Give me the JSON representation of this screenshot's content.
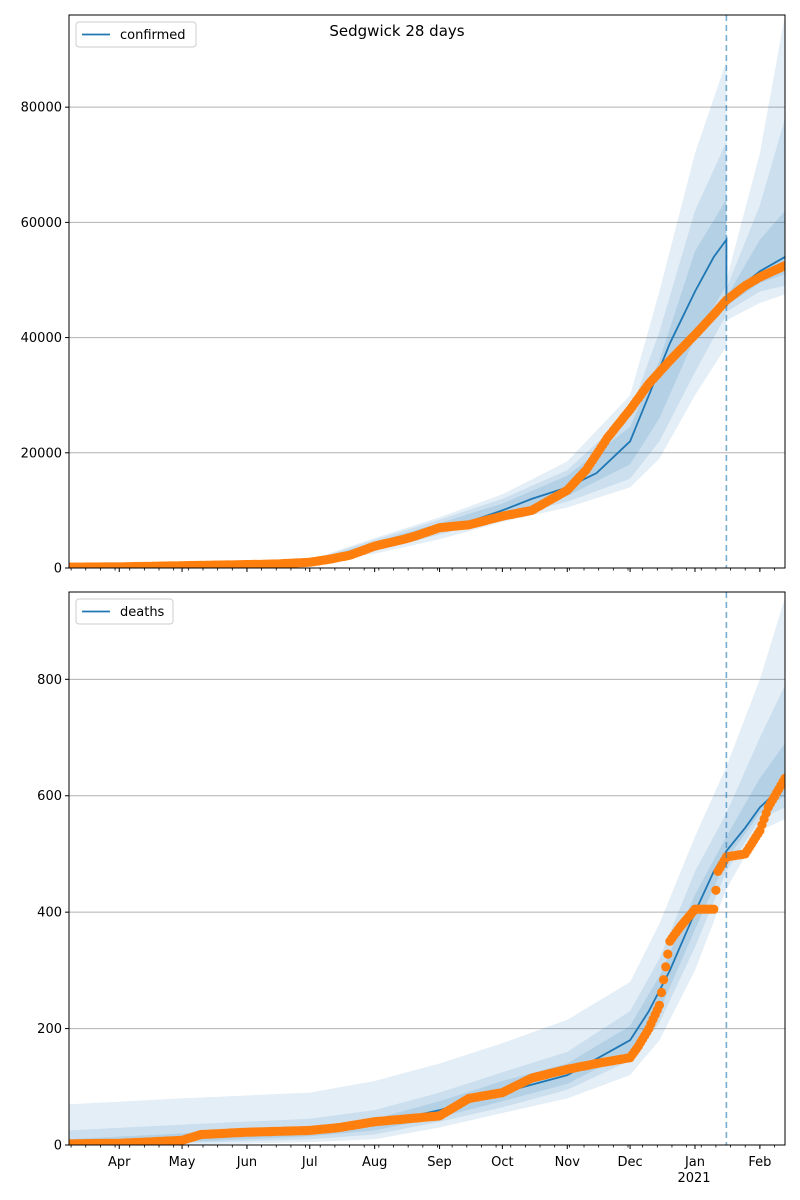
{
  "figure": {
    "title": "Sedgwick 28 days",
    "colors": {
      "model": "#1f77b4",
      "observed": "#ff7f0e",
      "band": "#1f77b4",
      "cutoff": "#1f77b4",
      "grid": "#b0b0b0"
    },
    "x_ticks": [
      {
        "date": "2020-04-01",
        "label": "Apr"
      },
      {
        "date": "2020-05-01",
        "label": "May"
      },
      {
        "date": "2020-06-01",
        "label": "Jun"
      },
      {
        "date": "2020-07-01",
        "label": "Jul"
      },
      {
        "date": "2020-08-01",
        "label": "Aug"
      },
      {
        "date": "2020-09-01",
        "label": "Sep"
      },
      {
        "date": "2020-10-01",
        "label": "Oct"
      },
      {
        "date": "2020-11-01",
        "label": "Nov"
      },
      {
        "date": "2020-12-01",
        "label": "Dec"
      },
      {
        "date": "2021-01-01",
        "label": "Jan"
      },
      {
        "date": "2021-02-01",
        "label": "Feb"
      }
    ],
    "year_label": "2021",
    "cutoff_date": "2021-01-16",
    "xlim": [
      "2020-03-08",
      "2021-02-13"
    ]
  },
  "chart_data": [
    {
      "type": "line",
      "legend": "confirmed",
      "legend_position": "top-left",
      "grid": "horizontal",
      "ylim": [
        0,
        96000
      ],
      "y_ticks": [
        0,
        20000,
        40000,
        60000,
        80000
      ],
      "series": [
        {
          "name": "confirmed",
          "kind": "model-median",
          "x": [
            "2020-03-08",
            "2020-04-01",
            "2020-05-01",
            "2020-06-01",
            "2020-07-01",
            "2020-07-15",
            "2020-08-01",
            "2020-08-15",
            "2020-09-01",
            "2020-09-15",
            "2020-10-01",
            "2020-10-15",
            "2020-11-01",
            "2020-11-15",
            "2020-12-01",
            "2020-12-10",
            "2020-12-20",
            "2021-01-01",
            "2021-01-10",
            "2021-01-16",
            "2021-01-16",
            "2021-01-25",
            "2021-02-01",
            "2021-02-13"
          ],
          "y": [
            0,
            50,
            250,
            500,
            1000,
            2200,
            4000,
            5500,
            7000,
            8000,
            10000,
            12000,
            14000,
            16500,
            22000,
            30000,
            39000,
            48000,
            54000,
            57000,
            46000,
            49500,
            51500,
            54000
          ]
        },
        {
          "kind": "observed",
          "x": [
            "2020-03-08",
            "2020-04-01",
            "2020-05-01",
            "2020-06-01",
            "2020-06-15",
            "2020-07-01",
            "2020-07-10",
            "2020-07-20",
            "2020-08-01",
            "2020-08-15",
            "2020-08-20",
            "2020-09-01",
            "2020-09-15",
            "2020-10-01",
            "2020-10-15",
            "2020-11-01",
            "2020-11-10",
            "2020-11-20",
            "2020-12-01",
            "2020-12-10",
            "2020-12-20",
            "2021-01-01",
            "2021-01-10",
            "2021-01-16",
            "2021-01-25",
            "2021-02-01",
            "2021-02-13"
          ],
          "y": [
            150,
            200,
            400,
            600,
            700,
            1000,
            1500,
            2200,
            3800,
            5000,
            5500,
            7000,
            7500,
            9000,
            10000,
            13500,
            17000,
            22500,
            27500,
            32000,
            36000,
            40500,
            44000,
            46500,
            49000,
            50500,
            52500
          ]
        }
      ],
      "bands": [
        {
          "level": "outer",
          "x": [
            "2020-03-08",
            "2020-05-01",
            "2020-07-01",
            "2020-08-01",
            "2020-09-01",
            "2020-10-01",
            "2020-11-01",
            "2020-12-01",
            "2020-12-15",
            "2021-01-01",
            "2021-01-16",
            "2021-01-16",
            "2021-02-01",
            "2021-02-13"
          ],
          "lower": [
            0,
            150,
            700,
            2500,
            5000,
            8000,
            10500,
            14000,
            19000,
            30000,
            38500,
            43000,
            46000,
            47500
          ],
          "upper": [
            200,
            600,
            1400,
            5200,
            8800,
            12800,
            18500,
            30000,
            48000,
            72000,
            88000,
            50000,
            72000,
            96000
          ]
        },
        {
          "level": "middle",
          "x": [
            "2020-03-08",
            "2020-05-01",
            "2020-07-01",
            "2020-08-01",
            "2020-09-01",
            "2020-10-01",
            "2020-11-01",
            "2020-12-01",
            "2020-12-15",
            "2021-01-01",
            "2021-01-16",
            "2021-01-16",
            "2021-02-01",
            "2021-02-13"
          ],
          "lower": [
            0,
            180,
            800,
            3000,
            5800,
            8800,
            11500,
            15500,
            22000,
            34000,
            44000,
            44500,
            48000,
            49000
          ],
          "upper": [
            150,
            450,
            1250,
            4900,
            8400,
            12000,
            17000,
            27000,
            41000,
            62000,
            74000,
            48500,
            63000,
            78000
          ]
        },
        {
          "level": "inner",
          "x": [
            "2020-03-08",
            "2020-05-01",
            "2020-07-01",
            "2020-08-01",
            "2020-09-01",
            "2020-10-01",
            "2020-11-01",
            "2020-12-01",
            "2020-12-15",
            "2021-01-01",
            "2021-01-16",
            "2021-01-16",
            "2021-02-01",
            "2021-02-13"
          ],
          "lower": [
            0,
            200,
            900,
            3400,
            6300,
            9300,
            12500,
            18000,
            26000,
            40000,
            49000,
            45500,
            49500,
            51000
          ],
          "upper": [
            100,
            350,
            1150,
            4500,
            7800,
            11200,
            16000,
            24500,
            36000,
            55000,
            64000,
            47000,
            57000,
            62000
          ]
        }
      ]
    },
    {
      "type": "line",
      "legend": "deaths",
      "legend_position": "top-left",
      "grid": "horizontal",
      "ylim": [
        0,
        950
      ],
      "y_ticks": [
        0,
        200,
        400,
        600,
        800
      ],
      "series": [
        {
          "name": "deaths",
          "kind": "model-median",
          "x": [
            "2020-03-08",
            "2020-04-01",
            "2020-05-01",
            "2020-06-01",
            "2020-07-01",
            "2020-08-01",
            "2020-09-01",
            "2020-10-01",
            "2020-11-01",
            "2020-12-01",
            "2020-12-10",
            "2020-12-20",
            "2021-01-01",
            "2021-01-10",
            "2021-01-16",
            "2021-01-25",
            "2021-02-01",
            "2021-02-13"
          ],
          "y": [
            0,
            3,
            10,
            20,
            25,
            35,
            60,
            90,
            120,
            180,
            230,
            300,
            400,
            470,
            505,
            545,
            580,
            620
          ]
        },
        {
          "kind": "observed",
          "x": [
            "2020-03-08",
            "2020-04-01",
            "2020-05-01",
            "2020-05-10",
            "2020-06-01",
            "2020-07-01",
            "2020-07-15",
            "2020-08-01",
            "2020-09-01",
            "2020-09-15",
            "2020-10-01",
            "2020-10-15",
            "2020-11-01",
            "2020-11-15",
            "2020-12-01",
            "2020-12-05",
            "2020-12-10",
            "2020-12-15",
            "2020-12-20",
            "2020-12-25",
            "2021-01-01",
            "2021-01-10",
            "2021-01-12",
            "2021-01-16",
            "2021-01-25",
            "2021-02-01",
            "2021-02-05",
            "2021-02-13"
          ],
          "y": [
            2,
            3,
            8,
            18,
            22,
            25,
            30,
            40,
            50,
            80,
            90,
            115,
            130,
            140,
            150,
            170,
            200,
            240,
            350,
            375,
            405,
            405,
            470,
            495,
            500,
            540,
            580,
            630
          ]
        }
      ],
      "bands": [
        {
          "level": "outer",
          "x": [
            "2020-03-08",
            "2020-05-01",
            "2020-07-01",
            "2020-08-01",
            "2020-09-01",
            "2020-10-01",
            "2020-11-01",
            "2020-12-01",
            "2020-12-15",
            "2021-01-01",
            "2021-01-16",
            "2021-02-01",
            "2021-02-13"
          ],
          "lower": [
            0,
            0,
            5,
            10,
            30,
            55,
            80,
            120,
            180,
            300,
            440,
            540,
            560
          ],
          "upper": [
            70,
            80,
            90,
            110,
            140,
            175,
            215,
            280,
            380,
            530,
            650,
            800,
            940
          ]
        },
        {
          "level": "middle",
          "x": [
            "2020-03-08",
            "2020-05-01",
            "2020-07-01",
            "2020-08-01",
            "2020-09-01",
            "2020-10-01",
            "2020-11-01",
            "2020-12-01",
            "2020-12-15",
            "2021-01-01",
            "2021-01-16",
            "2021-02-01",
            "2021-02-13"
          ],
          "lower": [
            0,
            3,
            10,
            18,
            40,
            65,
            95,
            145,
            210,
            340,
            470,
            560,
            580
          ],
          "upper": [
            25,
            35,
            45,
            60,
            90,
            125,
            160,
            230,
            320,
            470,
            570,
            700,
            790
          ]
        },
        {
          "level": "inner",
          "x": [
            "2020-03-08",
            "2020-05-01",
            "2020-07-01",
            "2020-08-01",
            "2020-09-01",
            "2020-10-01",
            "2020-11-01",
            "2020-12-01",
            "2020-12-15",
            "2021-01-01",
            "2021-01-16",
            "2021-02-01",
            "2021-02-13"
          ],
          "lower": [
            0,
            5,
            15,
            25,
            48,
            75,
            105,
            160,
            230,
            370,
            490,
            570,
            600
          ],
          "upper": [
            10,
            20,
            30,
            45,
            75,
            110,
            140,
            205,
            290,
            430,
            530,
            630,
            690
          ]
        }
      ]
    }
  ]
}
